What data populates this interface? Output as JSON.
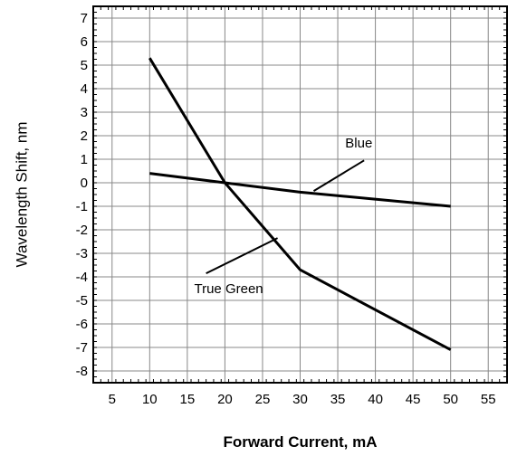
{
  "chart_data": {
    "type": "line",
    "title": "",
    "xlabel": "Forward Current, mA",
    "ylabel": "Wavelength Shift, nm",
    "xlim": [
      2.5,
      57.5
    ],
    "ylim": [
      -8.5,
      7.5
    ],
    "xticks": [
      5,
      10,
      15,
      20,
      25,
      30,
      35,
      40,
      45,
      50,
      55
    ],
    "yticks": [
      7,
      6,
      5,
      4,
      3,
      2,
      1,
      0,
      -1,
      -2,
      -3,
      -4,
      -5,
      -6,
      -7,
      -8
    ],
    "grid": true,
    "series": [
      {
        "name": "True Green",
        "color": "#000000",
        "x": [
          10,
          20,
          30,
          50
        ],
        "y": [
          5.3,
          0.0,
          -3.7,
          -7.1
        ]
      },
      {
        "name": "Blue",
        "color": "#000000",
        "x": [
          10,
          20,
          30,
          50
        ],
        "y": [
          0.4,
          0.0,
          -0.4,
          -1.0
        ]
      }
    ],
    "annotations": [
      {
        "text": "Blue",
        "label_x": 37.8,
        "label_y": 1.5,
        "arrow_from": [
          38.5,
          0.95
        ],
        "arrow_to": [
          31.8,
          -0.35
        ]
      },
      {
        "text": "True Green",
        "label_x": 20.5,
        "label_y": -4.7,
        "arrow_from": [
          17.5,
          -3.85
        ],
        "arrow_to": [
          27.0,
          -2.35
        ]
      }
    ]
  }
}
